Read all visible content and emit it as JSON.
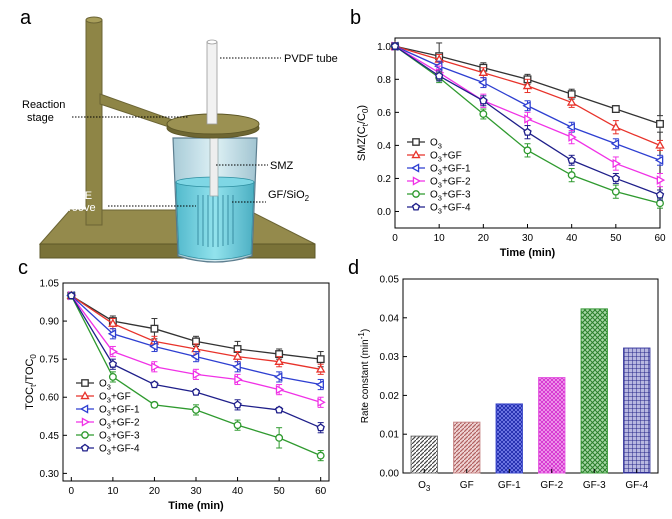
{
  "panels": {
    "a": "a",
    "b": "b",
    "c": "c",
    "d": "d"
  },
  "illustration": {
    "labels": {
      "pvdf_tube": "PVDF tube",
      "reaction_stage_1": "Reaction",
      "reaction_stage_2": "stage",
      "smz": "SMZ",
      "ptfe_1": "PTFE",
      "ptfe_2": "groove",
      "gf_sio2": "GF/SiO",
      "gf_sio2_sub": "2"
    },
    "colors": {
      "stand": "#8e8546",
      "stand_dark": "#6b6434",
      "base_top": "#948a4c",
      "base_front": "#7a7238",
      "liquid": "#5cc8d8",
      "beaker": "#b9dbe6",
      "tube": "#eeeeee"
    }
  },
  "colors": {
    "O3": "#333333",
    "GF": "#e8332b",
    "GF-1": "#2e3fd1",
    "GF-2": "#f032e6",
    "GF-3": "#2f9a2f",
    "GF-4": "#1f1f8a"
  },
  "chart_data": [
    {
      "id": "b",
      "type": "line",
      "xlabel": "Time (min)",
      "ylabel_main": "SMZ(C",
      "ylabel_sub1": "t",
      "ylabel_mid": "/C",
      "ylabel_sub2": "0",
      "ylabel_end": ")",
      "xlim": [
        0,
        60
      ],
      "ylim": [
        -0.1,
        1.05
      ],
      "xticks": [
        0,
        10,
        20,
        30,
        40,
        50,
        60
      ],
      "yticks": [
        0.0,
        0.2,
        0.4,
        0.6,
        0.8,
        1.0
      ],
      "ytick_labels": [
        "0.0",
        "0.2",
        "0.4",
        "0.6",
        "0.8",
        "1.0"
      ],
      "legend_position": "left-middle",
      "x": [
        0,
        10,
        20,
        30,
        40,
        50,
        60
      ],
      "series": [
        {
          "key": "O3",
          "marker": "square",
          "legend_main": "O",
          "legend_sub": "3",
          "legend_tail": "",
          "values": [
            1.0,
            0.94,
            0.87,
            0.8,
            0.71,
            0.62,
            0.53
          ],
          "errors": [
            0.02,
            0.08,
            0.03,
            0.03,
            0.03,
            0.02,
            0.05
          ]
        },
        {
          "key": "GF",
          "marker": "triangle-up",
          "legend_main": "O",
          "legend_sub": "3",
          "legend_tail": "+GF",
          "values": [
            1.0,
            0.92,
            0.84,
            0.76,
            0.66,
            0.51,
            0.4
          ],
          "errors": [
            0.02,
            0.03,
            0.03,
            0.04,
            0.03,
            0.04,
            0.03
          ]
        },
        {
          "key": "GF-1",
          "marker": "triangle-left",
          "legend_main": "O",
          "legend_sub": "3",
          "legend_tail": "+GF-1",
          "values": [
            1.0,
            0.88,
            0.78,
            0.64,
            0.51,
            0.41,
            0.31
          ],
          "errors": [
            0.02,
            0.03,
            0.03,
            0.03,
            0.03,
            0.03,
            0.03
          ]
        },
        {
          "key": "GF-2",
          "marker": "triangle-right",
          "legend_main": "O",
          "legend_sub": "3",
          "legend_tail": "+GF-2",
          "values": [
            1.0,
            0.84,
            0.67,
            0.56,
            0.45,
            0.29,
            0.19
          ],
          "errors": [
            0.02,
            0.04,
            0.04,
            0.04,
            0.04,
            0.04,
            0.04
          ]
        },
        {
          "key": "GF-3",
          "marker": "circle",
          "legend_main": "O",
          "legend_sub": "3",
          "legend_tail": "+GF-3",
          "values": [
            1.0,
            0.81,
            0.59,
            0.37,
            0.22,
            0.12,
            0.05
          ],
          "errors": [
            0.02,
            0.03,
            0.03,
            0.04,
            0.04,
            0.04,
            0.03
          ]
        },
        {
          "key": "GF-4",
          "marker": "pentagon",
          "legend_main": "O",
          "legend_sub": "3",
          "legend_tail": "+GF-4",
          "values": [
            1.0,
            0.82,
            0.67,
            0.48,
            0.31,
            0.2,
            0.1
          ],
          "errors": [
            0.02,
            0.03,
            0.03,
            0.04,
            0.03,
            0.03,
            0.03
          ]
        }
      ]
    },
    {
      "id": "c",
      "type": "line",
      "xlabel": "Time (min)",
      "ylabel_main": "TOC",
      "ylabel_sub1": "t",
      "ylabel_mid": "/TOC",
      "ylabel_sub2": "0",
      "ylabel_end": "",
      "xlim": [
        -2,
        62
      ],
      "ylim": [
        0.27,
        1.05
      ],
      "xticks": [
        0,
        10,
        20,
        30,
        40,
        50,
        60
      ],
      "yticks": [
        0.3,
        0.45,
        0.6,
        0.75,
        0.9,
        1.05
      ],
      "ytick_labels": [
        "0.30",
        "0.45",
        "0.60",
        "0.75",
        "0.90",
        "1.05"
      ],
      "legend_position": "left-lower",
      "x": [
        0,
        10,
        20,
        30,
        40,
        50,
        60
      ],
      "series": [
        {
          "key": "O3",
          "marker": "square",
          "legend_main": "O",
          "legend_sub": "3",
          "legend_tail": "",
          "values": [
            1.0,
            0.9,
            0.87,
            0.82,
            0.79,
            0.77,
            0.75
          ],
          "errors": [
            0.01,
            0.02,
            0.04,
            0.02,
            0.03,
            0.02,
            0.03
          ]
        },
        {
          "key": "GF",
          "marker": "triangle-up",
          "legend_main": "O",
          "legend_sub": "3",
          "legend_tail": "+GF",
          "values": [
            1.0,
            0.89,
            0.82,
            0.79,
            0.76,
            0.74,
            0.71
          ],
          "errors": [
            0.01,
            0.02,
            0.02,
            0.02,
            0.02,
            0.02,
            0.02
          ]
        },
        {
          "key": "GF-1",
          "marker": "triangle-left",
          "legend_main": "O",
          "legend_sub": "3",
          "legend_tail": "+GF-1",
          "values": [
            1.0,
            0.85,
            0.8,
            0.76,
            0.72,
            0.68,
            0.65
          ],
          "errors": [
            0.01,
            0.02,
            0.02,
            0.02,
            0.02,
            0.02,
            0.02
          ]
        },
        {
          "key": "GF-2",
          "marker": "triangle-right",
          "legend_main": "O",
          "legend_sub": "3",
          "legend_tail": "+GF-2",
          "values": [
            1.0,
            0.78,
            0.72,
            0.69,
            0.67,
            0.63,
            0.58
          ],
          "errors": [
            0.01,
            0.02,
            0.02,
            0.02,
            0.02,
            0.02,
            0.02
          ]
        },
        {
          "key": "GF-3",
          "marker": "circle",
          "legend_main": "O",
          "legend_sub": "3",
          "legend_tail": "+GF-3",
          "values": [
            1.0,
            0.68,
            0.57,
            0.55,
            0.49,
            0.44,
            0.37
          ],
          "errors": [
            0.01,
            0.02,
            0.01,
            0.02,
            0.02,
            0.04,
            0.02
          ]
        },
        {
          "key": "GF-4",
          "marker": "pentagon",
          "legend_main": "O",
          "legend_sub": "3",
          "legend_tail": "+GF-4",
          "values": [
            1.0,
            0.73,
            0.65,
            0.62,
            0.57,
            0.55,
            0.48
          ],
          "errors": [
            0.01,
            0.02,
            0.01,
            0.01,
            0.02,
            0.01,
            0.02
          ]
        }
      ]
    },
    {
      "id": "d",
      "type": "bar",
      "ylabel_main": "Rate constant (min",
      "ylabel_sup": "-1",
      "ylabel_end": ")",
      "ylim": [
        0,
        0.05
      ],
      "yticks": [
        0.0,
        0.01,
        0.02,
        0.03,
        0.04,
        0.05
      ],
      "ytick_labels": [
        "0.00",
        "0.01",
        "0.02",
        "0.03",
        "0.04",
        "0.05"
      ],
      "categories": [
        {
          "key": "O3",
          "main": "O",
          "sub": "3"
        },
        {
          "key": "GF",
          "main": "GF",
          "sub": ""
        },
        {
          "key": "GF-1",
          "main": "GF-1",
          "sub": ""
        },
        {
          "key": "GF-2",
          "main": "GF-2",
          "sub": ""
        },
        {
          "key": "GF-3",
          "main": "GF-3",
          "sub": ""
        },
        {
          "key": "GF-4",
          "main": "GF-4",
          "sub": ""
        }
      ],
      "values": [
        0.0095,
        0.0131,
        0.0178,
        0.0246,
        0.0423,
        0.0322
      ],
      "fill_colors": [
        "#6e6e6e",
        "#c88a8a",
        "#3a46c8",
        "#e455e0",
        "#3a9a3a",
        "#3a3aa0"
      ],
      "patterns": [
        "diag",
        "diag",
        "cross",
        "cross",
        "cross",
        "grid"
      ]
    }
  ]
}
